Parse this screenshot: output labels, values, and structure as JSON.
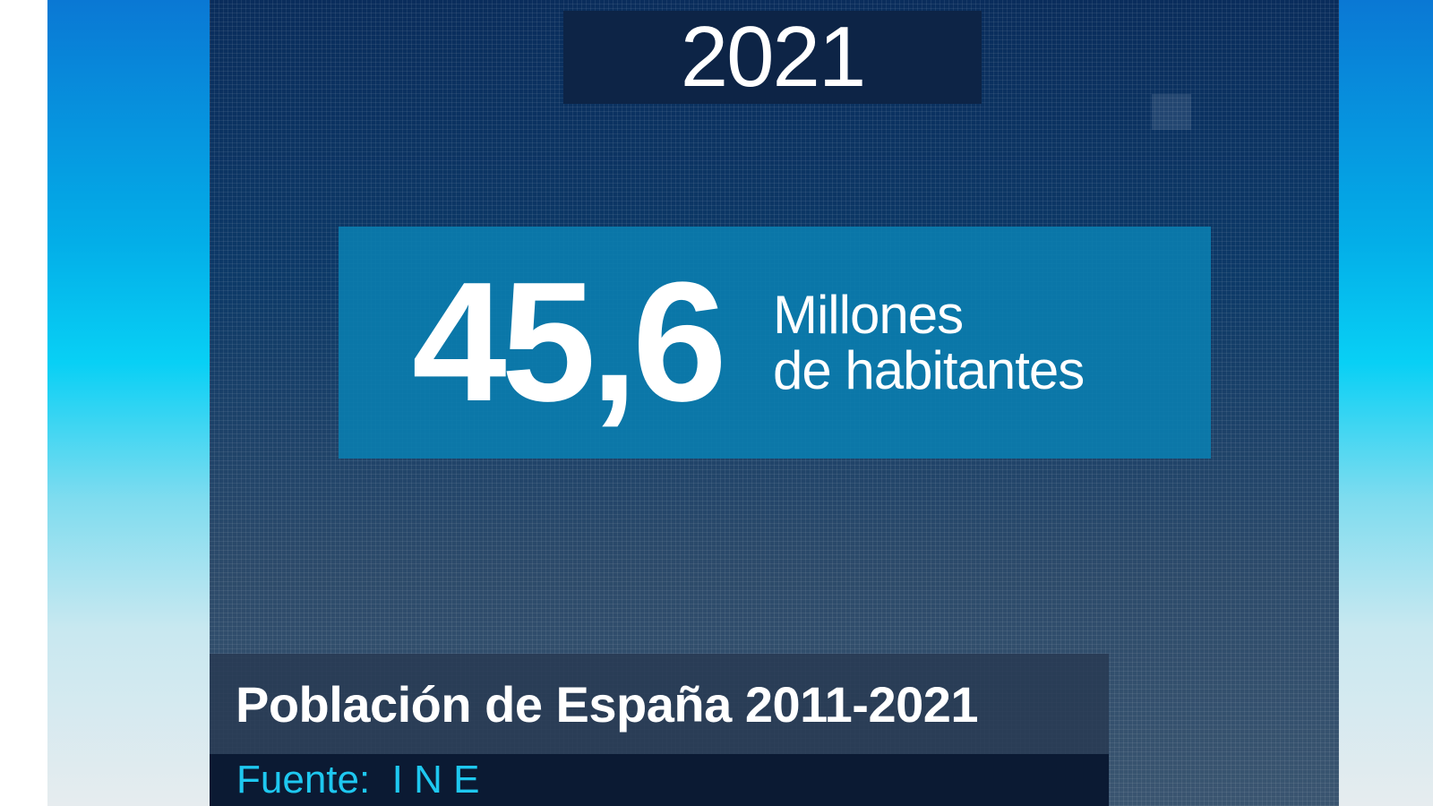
{
  "year": "2021",
  "population": {
    "value": "45,6",
    "unit_line1": "Millones",
    "unit_line2": "de habitantes"
  },
  "title": "Población de España 2011-2021",
  "source": "Fuente:  I N E",
  "colors": {
    "accent": "#1ec8f0",
    "panel": "#0d3a68",
    "value_box": "#0a7daf"
  }
}
